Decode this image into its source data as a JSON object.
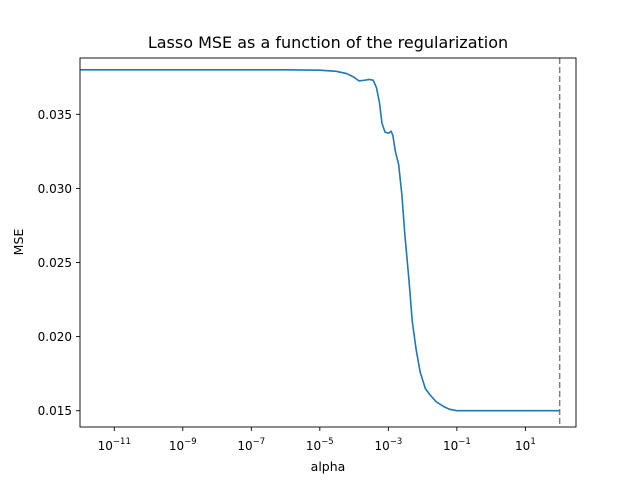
{
  "chart_data": {
    "type": "line",
    "title": "Lasso MSE as a function of the regularization",
    "xlabel": "alpha",
    "ylabel": "MSE",
    "x_scale": "log",
    "xlim": [
      1e-12,
      300.0
    ],
    "ylim": [
      0.0139,
      0.0388
    ],
    "x_ticks": [
      {
        "base": "10",
        "exp": "−11",
        "value": 1e-11
      },
      {
        "base": "10",
        "exp": "−9",
        "value": 1e-09
      },
      {
        "base": "10",
        "exp": "−7",
        "value": 1e-07
      },
      {
        "base": "10",
        "exp": "−5",
        "value": 1e-05
      },
      {
        "base": "10",
        "exp": "−3",
        "value": 0.001
      },
      {
        "base": "10",
        "exp": "−1",
        "value": 0.1
      },
      {
        "base": "10",
        "exp": "1",
        "value": 10
      }
    ],
    "y_ticks": [
      {
        "label": "0.015",
        "value": 0.015
      },
      {
        "label": "0.020",
        "value": 0.02
      },
      {
        "label": "0.025",
        "value": 0.025
      },
      {
        "label": "0.030",
        "value": 0.03
      },
      {
        "label": "0.035",
        "value": 0.035
      }
    ],
    "grid": false,
    "vline": {
      "x": 100,
      "style": "dashed",
      "color": "#7f7f7f"
    },
    "series": [
      {
        "color": "#1f77b4",
        "points": [
          [
            1e-12,
            0.038
          ],
          [
            1e-10,
            0.038
          ],
          [
            1e-08,
            0.038
          ],
          [
            1e-06,
            0.038
          ],
          [
            1e-05,
            0.03798
          ],
          [
            3e-05,
            0.0379
          ],
          [
            6e-05,
            0.03775
          ],
          [
            0.0001,
            0.0375
          ],
          [
            0.00014,
            0.03725
          ],
          [
            0.0002,
            0.0373
          ],
          [
            0.00028,
            0.03735
          ],
          [
            0.00036,
            0.0373
          ],
          [
            0.00045,
            0.0368
          ],
          [
            0.00055,
            0.0358
          ],
          [
            0.00065,
            0.0344
          ],
          [
            0.0008,
            0.0338
          ],
          [
            0.001,
            0.03372
          ],
          [
            0.0012,
            0.03385
          ],
          [
            0.00135,
            0.0336
          ],
          [
            0.0016,
            0.0325
          ],
          [
            0.002,
            0.0316
          ],
          [
            0.0025,
            0.0295
          ],
          [
            0.003,
            0.027
          ],
          [
            0.004,
            0.0238
          ],
          [
            0.005,
            0.021
          ],
          [
            0.0065,
            0.0191
          ],
          [
            0.0085,
            0.0176
          ],
          [
            0.012,
            0.0165
          ],
          [
            0.016,
            0.0161
          ],
          [
            0.025,
            0.0156
          ],
          [
            0.04,
            0.0153
          ],
          [
            0.06,
            0.0151
          ],
          [
            0.1,
            0.015
          ],
          [
            1,
            0.015
          ],
          [
            10,
            0.015
          ],
          [
            100,
            0.015
          ]
        ]
      }
    ]
  },
  "style": {
    "line_color": "#1f77b4",
    "vline_color": "#7f7f7f",
    "axis_color": "#000000"
  }
}
